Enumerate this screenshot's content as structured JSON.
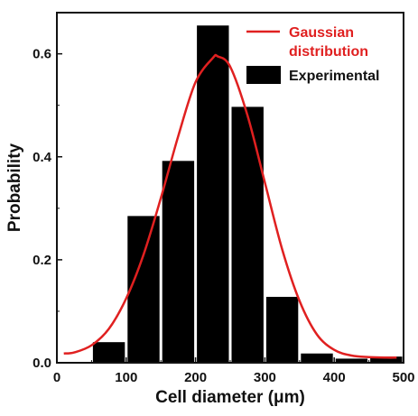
{
  "chart_data": {
    "type": "bar",
    "xlabel": "Cell diameter (μm)",
    "ylabel": "Probability",
    "xlim": [
      0,
      500
    ],
    "ylim": [
      0,
      0.68
    ],
    "x_ticks": [
      "0",
      "100",
      "200",
      "300",
      "400",
      "500"
    ],
    "x_tick_values": [
      0,
      100,
      200,
      300,
      400,
      500
    ],
    "y_ticks": [
      "0.0",
      "0.2",
      "0.4",
      "0.6"
    ],
    "y_tick_values": [
      0.0,
      0.2,
      0.4,
      0.6
    ],
    "bars": {
      "name": "Experimental",
      "color": "#000000",
      "bin_width": 50,
      "centers": [
        75,
        125,
        175,
        225,
        275,
        325,
        375,
        425,
        475
      ],
      "values": [
        0.04,
        0.285,
        0.392,
        0.655,
        0.497,
        0.128,
        0.018,
        0.008,
        0.012
      ]
    },
    "curve": {
      "name": "Gaussian distribution",
      "name_lines": [
        "Gaussian",
        "distribution"
      ],
      "color": "#e02020",
      "x": [
        10,
        25,
        50,
        75,
        100,
        125,
        150,
        175,
        200,
        225,
        232,
        250,
        275,
        300,
        325,
        350,
        375,
        400,
        425,
        450,
        475,
        490
      ],
      "y": [
        0.018,
        0.02,
        0.034,
        0.066,
        0.125,
        0.21,
        0.32,
        0.44,
        0.545,
        0.592,
        0.595,
        0.575,
        0.48,
        0.35,
        0.22,
        0.12,
        0.055,
        0.025,
        0.014,
        0.011,
        0.01,
        0.01
      ]
    },
    "legend_position": "top-right",
    "grid": false
  }
}
